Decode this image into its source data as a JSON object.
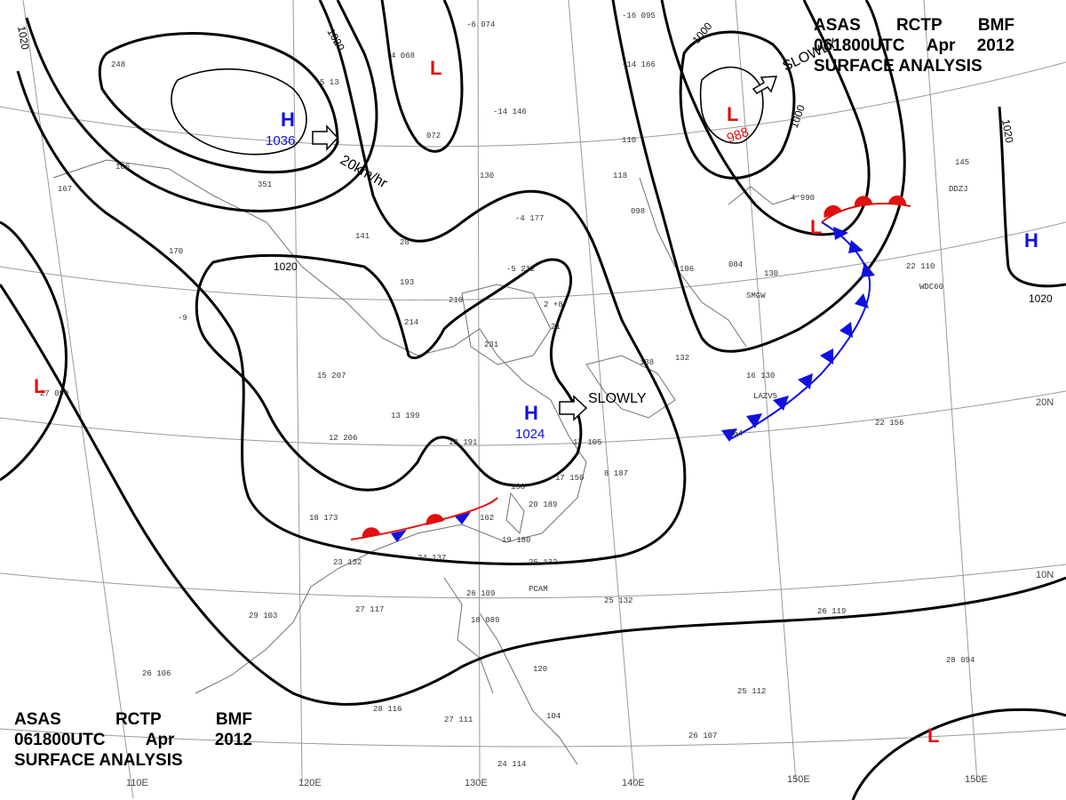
{
  "header": {
    "line1": [
      "ASAS",
      "RCTP",
      "BMF"
    ],
    "line2": [
      "061800UTC",
      "Apr",
      "2012"
    ],
    "line3": "SURFACE ANALYSIS"
  },
  "longitude_labels": [
    "110E",
    "120E",
    "130E",
    "140E",
    "150E"
  ],
  "latitude_labels": [
    "20N",
    "10N"
  ],
  "isobar_labels": [
    "1020",
    "1020",
    "1000",
    "1000",
    "1020",
    "1020"
  ],
  "pressure_systems": [
    {
      "type": "H",
      "pressure": "1036"
    },
    {
      "type": "L",
      "pressure": ""
    },
    {
      "type": "L",
      "pressure": "988"
    },
    {
      "type": "H",
      "pressure": "1024"
    },
    {
      "type": "H",
      "pressure": ""
    },
    {
      "type": "L",
      "pressure": ""
    },
    {
      "type": "L",
      "pressure": ""
    },
    {
      "type": "L",
      "pressure": ""
    }
  ],
  "motions": [
    "20km/hr",
    "SLOWLY",
    "SLOWLY"
  ],
  "station_labels": [
    "SMGW",
    "LAZV5",
    "PCAM",
    "WDC60",
    "DDZJ"
  ],
  "colors": {
    "high": "#1010e0",
    "low": "#e01010",
    "warm_front": "#e01010",
    "cold_front": "#1010e0"
  }
}
